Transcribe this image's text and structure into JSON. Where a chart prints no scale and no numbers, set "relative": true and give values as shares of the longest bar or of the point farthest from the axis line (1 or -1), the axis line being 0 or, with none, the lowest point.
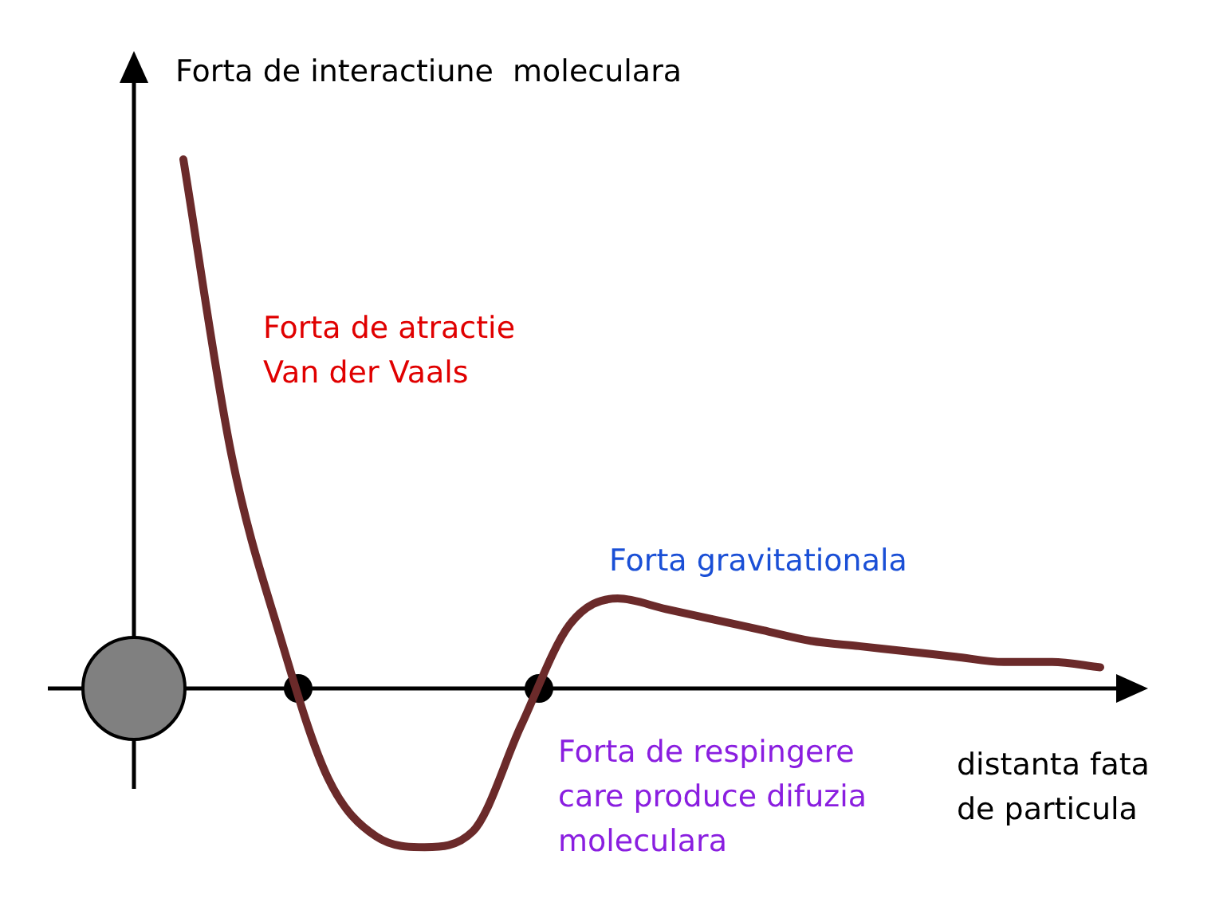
{
  "chart_data": {
    "type": "line",
    "relative": true,
    "ylabel": "Forta de interactiune  moleculara",
    "xlabel": "distanta fata\nde particula",
    "annotations": [
      "Forta de atractie\nVan der Vaals",
      "Forta gravitationala",
      "Forta de respingere\ncare produce difuzia\nmoleculara"
    ],
    "categories": [
      null,
      null,
      null,
      null,
      null,
      null,
      null,
      null,
      null,
      null,
      null,
      null,
      null,
      null,
      null,
      null,
      null,
      null,
      null,
      null
    ],
    "series": [
      {
        "color": "#6b2a2a",
        "values": [
          1.0,
          0.44,
          0.1,
          -0.17,
          -0.28,
          -0.3,
          -0.27,
          -0.07,
          0.12,
          0.17,
          0.15,
          0.13,
          0.11,
          0.09,
          0.08,
          0.07,
          0.06,
          0.05,
          0.05,
          0.04
        ]
      }
    ],
    "legend": false,
    "grid": false,
    "tick_labels": false
  }
}
